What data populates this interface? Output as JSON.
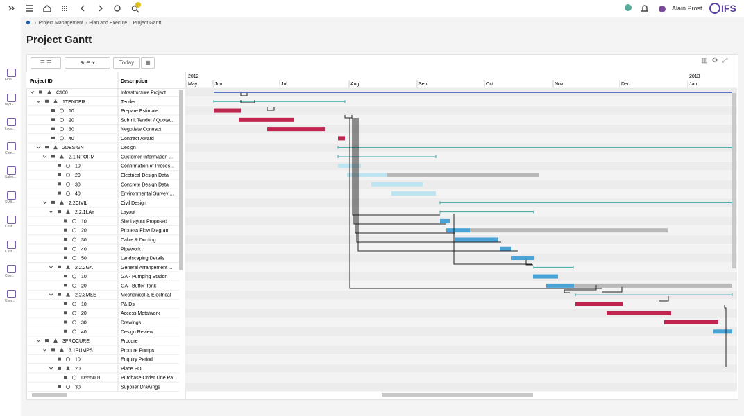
{
  "header": {
    "user": "Alain Prost",
    "logo": "IFS"
  },
  "sidebar": [
    "Fina...",
    "My G...",
    "Loca...",
    "Com...",
    "Sales...",
    "SUB...",
    "Cust...",
    "Cust...",
    "Com...",
    "User..."
  ],
  "breadcrumb": [
    "Project Management",
    "Plan and Execute",
    "Project Gantt"
  ],
  "page": {
    "title": "Project Gantt"
  },
  "toolbar": {
    "today": "Today"
  },
  "grid": {
    "columns": [
      "Project ID",
      "Description"
    ],
    "rows": [
      {
        "id": "C100",
        "description": "Infrastructure Project"
      },
      {
        "id": "1TENDER",
        "description": "Tender"
      },
      {
        "id": "10",
        "description": "Prepare Estimate"
      },
      {
        "id": "20",
        "description": "Submit Tender / Quotat..."
      },
      {
        "id": "30",
        "description": "Negotiate Contract"
      },
      {
        "id": "40",
        "description": "Contract Award"
      },
      {
        "id": "2DESIGN",
        "description": "Design"
      },
      {
        "id": "2.1INFORM",
        "description": "Customer Information ..."
      },
      {
        "id": "10",
        "description": "Confirmation of Proces..."
      },
      {
        "id": "20",
        "description": "Electrical Design Data"
      },
      {
        "id": "30",
        "description": "Concrete Design Data"
      },
      {
        "id": "40",
        "description": "Environmental Survey ..."
      },
      {
        "id": "2.2CIVIL",
        "description": "Civil Design"
      },
      {
        "id": "2.2.1LAY",
        "description": "Layout"
      },
      {
        "id": "10",
        "description": "Site Layout Proposed"
      },
      {
        "id": "20",
        "description": "Process Flow Diagram"
      },
      {
        "id": "30",
        "description": "Cable & Ducting"
      },
      {
        "id": "40",
        "description": "Pipework"
      },
      {
        "id": "50",
        "description": "Landscaping Details"
      },
      {
        "id": "2.2.2GA",
        "description": "General Arrangement ..."
      },
      {
        "id": "10",
        "description": "GA - Pumping Station"
      },
      {
        "id": "20",
        "description": "GA - Buffer Tank"
      },
      {
        "id": "2.2.3M&E",
        "description": "Mechanical & Electrical"
      },
      {
        "id": "10",
        "description": "P&IDs"
      },
      {
        "id": "20",
        "description": "Access Metalwork"
      },
      {
        "id": "30",
        "description": "Drawings"
      },
      {
        "id": "40",
        "description": "Design Review"
      },
      {
        "id": "3PROCURE",
        "description": "Procure"
      },
      {
        "id": "3.1PUMPS",
        "description": "Procure Pumps"
      },
      {
        "id": "10",
        "description": "Enquiry Period"
      },
      {
        "id": "20",
        "description": "Place PO"
      },
      {
        "id": "D555001",
        "description": "Purchase Order Line Pa..."
      },
      {
        "id": "30",
        "description": "Supplier Drawings"
      }
    ]
  },
  "timeline": {
    "years": [
      "2012",
      "2013"
    ],
    "months": [
      "May",
      "Jun",
      "Jul",
      "Aug",
      "Sep",
      "Oct",
      "Nov",
      "Dec",
      "Jan"
    ]
  }
}
